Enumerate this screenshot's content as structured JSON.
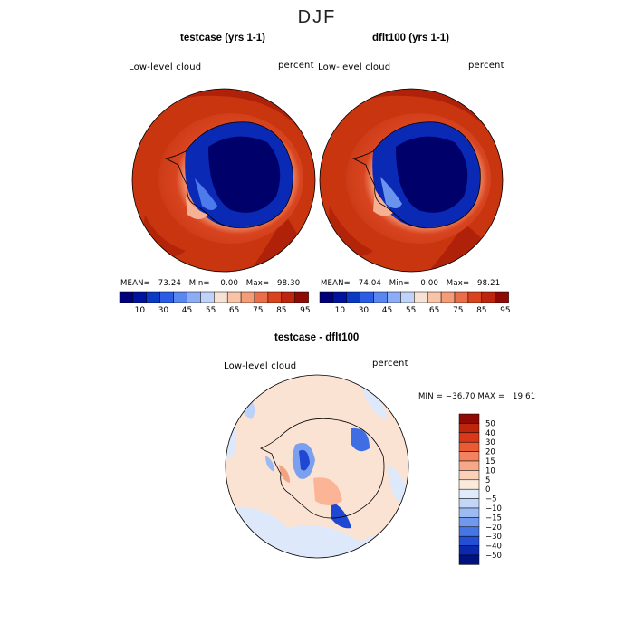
{
  "figure": {
    "season": "DJF",
    "panels": [
      {
        "title": "testcase (yrs 1-1)",
        "variable": "Low-level cloud",
        "units": "percent",
        "stats_text": "MEAN=   73.24   Min=    0.00   Max=   98.30",
        "stats": {
          "mean": 73.24,
          "min": 0.0,
          "max": 98.3
        }
      },
      {
        "title": "dflt100 (yrs 1-1)",
        "variable": "Low-level cloud",
        "units": "percent",
        "stats_text": "MEAN=   74.04   Min=    0.00   Max=   98.21",
        "stats": {
          "mean": 74.04,
          "min": 0.0,
          "max": 98.21
        }
      }
    ],
    "diff": {
      "title": "testcase - dflt100",
      "variable": "Low-level cloud",
      "units": "percent",
      "stats_text": "MIN = −36.70 MAX =   19.61",
      "stats": {
        "min": -36.7,
        "max": 19.61
      }
    },
    "colorbar_top": {
      "colors": [
        "#00007a",
        "#00139e",
        "#0a39c4",
        "#2a5ce4",
        "#5a86ef",
        "#8cacf5",
        "#bfd2fa",
        "#f6e2d4",
        "#f9c3a7",
        "#f49b78",
        "#ea6e4a",
        "#d9441f",
        "#bd250d",
        "#8f0a05"
      ],
      "tick_labels": [
        "10",
        "30",
        "45",
        "55",
        "65",
        "75",
        "85",
        "95"
      ]
    },
    "colorbar_diff": {
      "colors": [
        "#8f0a05",
        "#bd250d",
        "#d9391a",
        "#ea5a33",
        "#f2835e",
        "#f6a887",
        "#fad0b8",
        "#fbe9dc",
        "#dfeafb",
        "#c3d6f8",
        "#9dbaf3",
        "#7098ec",
        "#4675e4",
        "#234fd4",
        "#0c28ad",
        "#00127f"
      ],
      "tick_labels": [
        "50",
        "40",
        "30",
        "20",
        "15",
        "10",
        "5",
        "0",
        "−5",
        "−10",
        "−15",
        "−20",
        "−30",
        "−40",
        "−50"
      ]
    }
  }
}
